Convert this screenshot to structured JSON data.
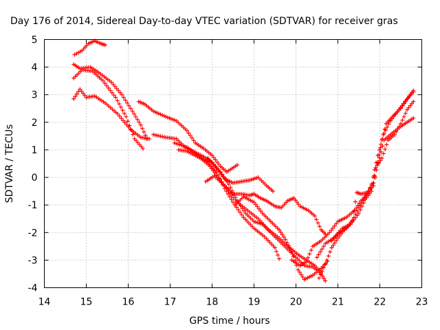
{
  "chart_data": {
    "type": "scatter",
    "title": "Day 176 of 2014, Sidereal Day-to-day VTEC variation (SDTVAR) for receiver gras",
    "xlabel": "GPS time / hours",
    "ylabel": "SDTVAR / TECUs",
    "xlim": [
      14,
      23
    ],
    "ylim": [
      -4,
      5
    ],
    "xticks": [
      "14",
      "15",
      "16",
      "17",
      "18",
      "19",
      "20",
      "21",
      "22",
      "23"
    ],
    "yticks": [
      "-4",
      "-3",
      "-2",
      "-1",
      "0",
      "1",
      "2",
      "3",
      "4",
      "5"
    ],
    "grid": true,
    "marker": "plus",
    "color": "#ff0000",
    "series": [
      {
        "name": "track-1",
        "points": [
          [
            14.72,
            4.45
          ],
          [
            14.9,
            4.6
          ],
          [
            15.05,
            4.85
          ],
          [
            15.2,
            4.95
          ],
          [
            15.35,
            4.85
          ],
          [
            15.45,
            4.8
          ]
        ]
      },
      {
        "name": "track-2",
        "points": [
          [
            14.7,
            4.1
          ],
          [
            14.85,
            3.95
          ],
          [
            15.1,
            4.0
          ],
          [
            15.3,
            3.8
          ],
          [
            15.6,
            3.45
          ],
          [
            15.85,
            3.0
          ],
          [
            16.1,
            2.4
          ],
          [
            16.3,
            1.9
          ],
          [
            16.45,
            1.4
          ]
        ]
      },
      {
        "name": "track-3",
        "points": [
          [
            14.7,
            3.6
          ],
          [
            14.9,
            3.9
          ],
          [
            15.15,
            3.85
          ],
          [
            15.4,
            3.5
          ],
          [
            15.7,
            2.9
          ],
          [
            15.95,
            2.2
          ],
          [
            16.15,
            1.4
          ],
          [
            16.35,
            1.05
          ]
        ]
      },
      {
        "name": "track-4",
        "points": [
          [
            14.7,
            2.85
          ],
          [
            14.85,
            3.2
          ],
          [
            15.0,
            2.9
          ],
          [
            15.2,
            2.95
          ],
          [
            15.45,
            2.7
          ],
          [
            15.75,
            2.3
          ],
          [
            16.05,
            1.75
          ],
          [
            16.3,
            1.45
          ],
          [
            16.5,
            1.4
          ]
        ]
      },
      {
        "name": "track-5",
        "points": [
          [
            16.25,
            2.75
          ],
          [
            16.4,
            2.65
          ],
          [
            16.6,
            2.4
          ],
          [
            16.9,
            2.2
          ],
          [
            17.15,
            2.05
          ],
          [
            17.4,
            1.7
          ],
          [
            17.6,
            1.25
          ],
          [
            17.8,
            1.05
          ],
          [
            18.0,
            0.8
          ],
          [
            18.2,
            0.4
          ],
          [
            18.35,
            0.2
          ],
          [
            18.6,
            0.45
          ]
        ]
      },
      {
        "name": "track-6",
        "points": [
          [
            16.6,
            1.55
          ],
          [
            16.9,
            1.45
          ],
          [
            17.15,
            1.4
          ],
          [
            17.35,
            1.1
          ],
          [
            17.55,
            0.95
          ],
          [
            17.8,
            0.75
          ],
          [
            18.0,
            0.55
          ],
          [
            18.2,
            0.2
          ],
          [
            18.4,
            -0.25
          ],
          [
            18.6,
            -0.85
          ],
          [
            18.8,
            -1.3
          ],
          [
            19.0,
            -1.6
          ],
          [
            19.2,
            -1.7
          ],
          [
            19.4,
            -2.0
          ],
          [
            19.6,
            -2.3
          ],
          [
            19.8,
            -2.6
          ],
          [
            20.0,
            -2.9
          ],
          [
            20.2,
            -3.2
          ],
          [
            20.4,
            -3.25
          ],
          [
            20.6,
            -3.5
          ],
          [
            20.7,
            -3.75
          ]
        ]
      },
      {
        "name": "track-7",
        "points": [
          [
            17.1,
            1.25
          ],
          [
            17.4,
            1.1
          ],
          [
            17.7,
            0.75
          ],
          [
            17.95,
            0.4
          ],
          [
            18.15,
            0.0
          ],
          [
            18.35,
            -0.4
          ],
          [
            18.6,
            -0.9
          ],
          [
            18.85,
            -1.2
          ],
          [
            19.1,
            -1.5
          ],
          [
            19.35,
            -1.9
          ],
          [
            19.6,
            -2.2
          ],
          [
            19.85,
            -2.55
          ],
          [
            20.05,
            -2.8
          ],
          [
            20.25,
            -3.0
          ],
          [
            20.45,
            -3.2
          ],
          [
            20.6,
            -3.45
          ]
        ]
      },
      {
        "name": "track-8",
        "points": [
          [
            17.2,
            1.0
          ],
          [
            17.4,
            0.95
          ],
          [
            17.65,
            0.75
          ],
          [
            17.9,
            0.55
          ],
          [
            18.1,
            0.2
          ],
          [
            18.3,
            -0.4
          ],
          [
            18.5,
            -0.9
          ],
          [
            18.75,
            -1.45
          ],
          [
            19.0,
            -1.85
          ],
          [
            19.25,
            -2.15
          ],
          [
            19.5,
            -2.55
          ],
          [
            19.6,
            -2.95
          ]
        ]
      },
      {
        "name": "track-9",
        "points": [
          [
            17.9,
            0.7
          ],
          [
            18.1,
            0.35
          ],
          [
            18.3,
            -0.05
          ],
          [
            18.5,
            -0.2
          ],
          [
            18.7,
            -0.15
          ],
          [
            18.9,
            -0.1
          ],
          [
            19.1,
            0.0
          ],
          [
            19.3,
            -0.3
          ],
          [
            19.45,
            -0.5
          ]
        ]
      },
      {
        "name": "track-10",
        "points": [
          [
            17.85,
            -0.15
          ],
          [
            18.05,
            0.05
          ],
          [
            18.3,
            -0.3
          ],
          [
            18.5,
            -0.6
          ],
          [
            18.7,
            -0.6
          ],
          [
            18.9,
            -0.65
          ],
          [
            19.0,
            -0.6
          ],
          [
            19.15,
            -0.75
          ],
          [
            19.3,
            -0.85
          ],
          [
            19.5,
            -1.05
          ],
          [
            19.65,
            -1.1
          ],
          [
            19.8,
            -0.85
          ],
          [
            19.95,
            -0.75
          ],
          [
            20.1,
            -1.05
          ],
          [
            20.3,
            -1.2
          ],
          [
            20.45,
            -1.4
          ],
          [
            20.6,
            -1.9
          ],
          [
            20.7,
            -2.05
          ]
        ]
      },
      {
        "name": "track-11",
        "points": [
          [
            18.55,
            -1.0
          ],
          [
            18.75,
            -0.7
          ],
          [
            19.0,
            -0.9
          ],
          [
            19.2,
            -1.3
          ],
          [
            19.4,
            -1.6
          ],
          [
            19.6,
            -1.9
          ],
          [
            19.75,
            -2.25
          ],
          [
            19.9,
            -2.7
          ],
          [
            20.05,
            -3.35
          ],
          [
            20.2,
            -3.7
          ],
          [
            20.4,
            -3.55
          ],
          [
            20.6,
            -3.3
          ],
          [
            20.75,
            -3.05
          ]
        ]
      },
      {
        "name": "track-12",
        "points": [
          [
            19.9,
            -3.0
          ],
          [
            20.1,
            -3.2
          ],
          [
            20.25,
            -3.05
          ],
          [
            20.4,
            -2.5
          ],
          [
            20.6,
            -2.3
          ],
          [
            20.8,
            -2.0
          ],
          [
            21.0,
            -1.6
          ],
          [
            21.2,
            -1.45
          ],
          [
            21.4,
            -1.2
          ],
          [
            21.55,
            -0.85
          ],
          [
            21.7,
            -0.6
          ],
          [
            21.85,
            -0.2
          ],
          [
            21.95,
            0.5
          ],
          [
            22.1,
            1.35
          ],
          [
            22.25,
            1.55
          ],
          [
            22.5,
            1.85
          ],
          [
            22.65,
            2.0
          ],
          [
            22.8,
            2.15
          ]
        ]
      },
      {
        "name": "track-13",
        "points": [
          [
            20.5,
            -2.9
          ],
          [
            20.7,
            -2.4
          ],
          [
            20.9,
            -2.2
          ],
          [
            21.1,
            -1.85
          ],
          [
            21.3,
            -1.7
          ],
          [
            21.5,
            -1.3
          ],
          [
            21.65,
            -0.8
          ],
          [
            21.8,
            -0.5
          ],
          [
            21.9,
            0.35
          ],
          [
            22.05,
            0.7
          ],
          [
            22.2,
            1.35
          ],
          [
            22.35,
            1.55
          ],
          [
            22.5,
            1.95
          ],
          [
            22.65,
            2.45
          ],
          [
            22.8,
            2.75
          ]
        ]
      },
      {
        "name": "track-14",
        "points": [
          [
            20.55,
            -3.65
          ],
          [
            20.7,
            -3.15
          ],
          [
            20.85,
            -2.55
          ],
          [
            21.0,
            -2.2
          ],
          [
            21.15,
            -1.9
          ],
          [
            21.3,
            -1.7
          ],
          [
            21.5,
            -1.1
          ],
          [
            21.65,
            -0.75
          ],
          [
            21.8,
            -0.25
          ],
          [
            21.95,
            0.8
          ],
          [
            22.1,
            1.6
          ],
          [
            22.25,
            2.05
          ],
          [
            22.45,
            2.45
          ],
          [
            22.6,
            2.75
          ],
          [
            22.8,
            3.1
          ]
        ]
      },
      {
        "name": "track-15",
        "points": [
          [
            20.85,
            -2.3
          ],
          [
            21.0,
            -2.05
          ],
          [
            21.2,
            -1.85
          ],
          [
            21.35,
            -1.55
          ],
          [
            21.45,
            -0.55
          ],
          [
            21.55,
            -0.6
          ],
          [
            21.7,
            -0.55
          ],
          [
            21.85,
            -0.3
          ],
          [
            21.95,
            0.55
          ],
          [
            22.05,
            1.35
          ],
          [
            22.15,
            1.95
          ],
          [
            22.3,
            2.2
          ],
          [
            22.5,
            2.5
          ],
          [
            22.7,
            2.95
          ],
          [
            22.8,
            3.15
          ]
        ]
      }
    ]
  }
}
